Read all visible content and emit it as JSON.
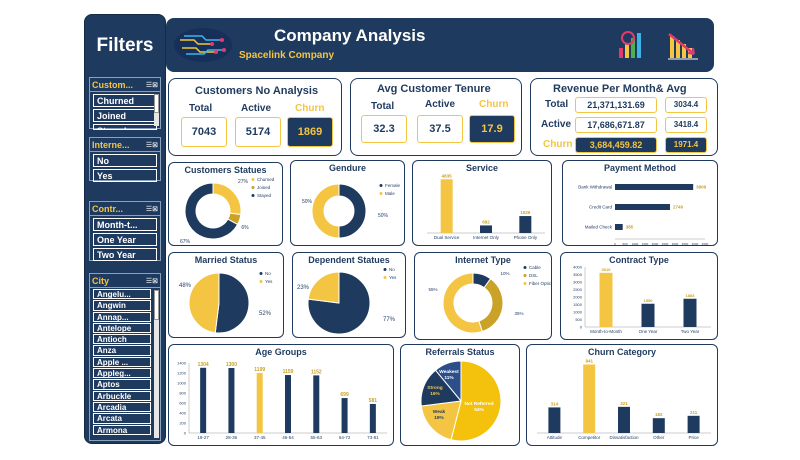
{
  "sidebar": {
    "title": "Filters",
    "slicers": [
      {
        "title": "Custom...",
        "items": [
          "Churned",
          "Joined",
          "Stayed"
        ]
      },
      {
        "title": "Interne...",
        "items": [
          "No",
          "Yes"
        ]
      },
      {
        "title": "Contr...",
        "items": [
          "Month-t...",
          "One Year",
          "Two Year"
        ]
      },
      {
        "title": "City",
        "items": [
          "Angelu...",
          "Angwin",
          "Annap...",
          "Antelope",
          "Antioch",
          "Anza",
          "Apple ...",
          "Appleg...",
          "Aptos",
          "Arbuckle",
          "Arcadia",
          "Arcata",
          "Armona"
        ]
      }
    ]
  },
  "header": {
    "title": "Company Analysis",
    "subtitle": "Spacelink Company"
  },
  "kpis": {
    "customers": {
      "title": "Customers No Analysis",
      "total_label": "Total",
      "active_label": "Active",
      "churn_label": "Churn",
      "total": "7043",
      "active": "5174",
      "churn": "1869"
    },
    "tenure": {
      "title": "Avg Customer Tenure",
      "total_label": "Total",
      "active_label": "Active",
      "churn_label": "Churn",
      "total": "32.3",
      "active": "37.5",
      "churn": "17.9"
    },
    "revenue": {
      "title": "Revenue Per Month& Avg",
      "total_label": "Total",
      "active_label": "Active",
      "churn_label": "Churn",
      "total": "21,371,131.69",
      "active": "17,686,671.87",
      "churn": "3,684,459.82",
      "total_avg": "3034.4",
      "active_avg": "3418.4",
      "churn_avg": "1971.4"
    }
  },
  "colors": {
    "navy": "#1f3a5f",
    "gold": "#f4c542",
    "olive": "#c9a227"
  },
  "chart_data": [
    {
      "type": "pie",
      "title": "Customers Statues",
      "donut": true,
      "categories": [
        "Churned",
        "Joined",
        "Stayed"
      ],
      "values": [
        27,
        6,
        67
      ],
      "labels": [
        "27%",
        "6%",
        "67%"
      ]
    },
    {
      "type": "pie",
      "title": "Gendure",
      "donut": true,
      "categories": [
        "Female",
        "Male"
      ],
      "values": [
        50,
        50
      ],
      "labels": [
        "50%",
        "50%"
      ]
    },
    {
      "type": "bar",
      "title": "Service",
      "categories": [
        "Dual Service",
        "Internet Only",
        "Phone Only"
      ],
      "values": [
        4835,
        682,
        1526
      ],
      "labels": [
        "4835",
        "682",
        "1526"
      ]
    },
    {
      "type": "bar",
      "orientation": "horizontal",
      "title": "Payment Method",
      "categories": [
        "Bank Withdrawal",
        "Credit Card",
        "Mailed Check"
      ],
      "values": [
        3909,
        2749,
        385
      ],
      "labels": [
        "3909",
        "2749",
        "385"
      ],
      "xlim": [
        0,
        4500
      ]
    },
    {
      "type": "pie",
      "title": "Married Status",
      "categories": [
        "No",
        "Yes"
      ],
      "values": [
        52,
        48
      ],
      "labels": [
        "52%",
        "48%"
      ]
    },
    {
      "type": "pie",
      "title": "Dependent Statues",
      "categories": [
        "No",
        "Yes"
      ],
      "values": [
        77,
        23
      ],
      "labels": [
        "77%",
        "23%"
      ]
    },
    {
      "type": "pie",
      "title": "Internet Type",
      "donut": true,
      "categories": [
        "Cable",
        "DSL",
        "Fiber Optic"
      ],
      "values": [
        10,
        35,
        55
      ],
      "labels": [
        "10%",
        "35%",
        "55%"
      ]
    },
    {
      "type": "bar",
      "title": "Contract Type",
      "categories": [
        "Month-to-Month",
        "One Year",
        "Two Year"
      ],
      "values": [
        3610,
        1550,
        1883
      ],
      "labels": [
        "3610",
        "1550",
        "1883"
      ],
      "ylim": [
        0,
        4000
      ],
      "yticks": [
        "4000",
        "3500",
        "3000",
        "2500",
        "2000",
        "1500",
        "1000",
        "500",
        "0"
      ]
    },
    {
      "type": "bar",
      "title": "Age Groups",
      "categories": [
        "19-27",
        "28-36",
        "37-45",
        "46-54",
        "55-63",
        "64-72",
        "73-81"
      ],
      "values": [
        1304,
        1300,
        1199,
        1159,
        1152,
        699,
        581
      ],
      "labels": [
        "1304",
        "1300",
        "1199",
        "1159",
        "1152",
        "699",
        "581"
      ],
      "ylim": [
        0,
        1400
      ],
      "yticks": [
        "1400",
        "1200",
        "1000",
        "800",
        "600",
        "400",
        "200",
        "0"
      ]
    },
    {
      "type": "pie",
      "title": "Referrals Status",
      "categories": [
        "Not Referred",
        "Weak",
        "Strong",
        "Weakest"
      ],
      "values": [
        54,
        19,
        16,
        11
      ],
      "labels": [
        "Not Referred\n54%",
        "Weak\n19%",
        "Strong\n16%",
        "Weakest\n11%"
      ]
    },
    {
      "type": "bar",
      "title": "Churn Category",
      "categories": [
        "Attitude",
        "Competitor",
        "Dissatisfaction",
        "Other",
        "Price"
      ],
      "values": [
        314,
        841,
        321,
        182,
        211
      ],
      "labels": [
        "314",
        "841",
        "321",
        "182",
        "211"
      ]
    }
  ]
}
